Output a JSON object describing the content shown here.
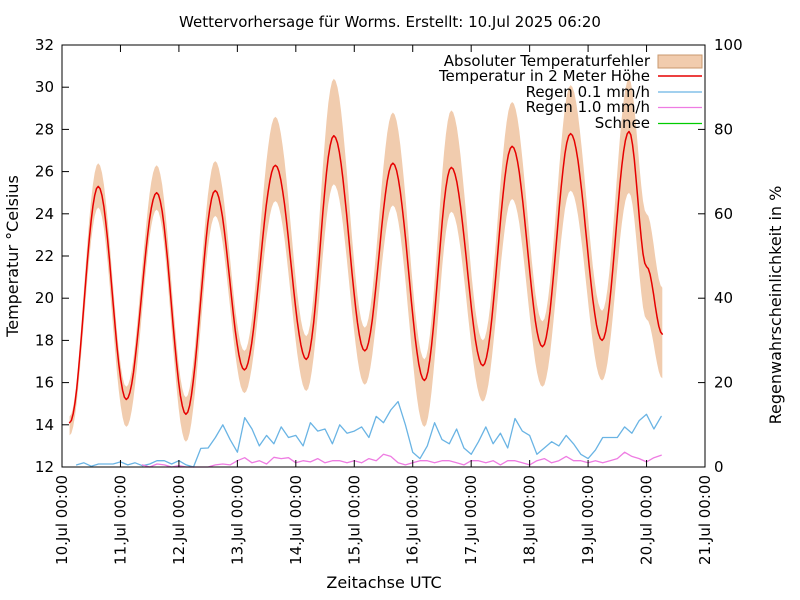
{
  "title": "Wettervorhersage für Worms. Erstellt: 10.Jul 2025 06:20",
  "axes": {
    "x_label": "Zeitachse UTC",
    "y_left_label": "Temperatur °Celsius",
    "y_right_label": "Regenwahrscheinlichkeit in %",
    "y_left_ticks": [
      12,
      14,
      16,
      18,
      20,
      22,
      24,
      26,
      28,
      30,
      32
    ],
    "y_right_ticks": [
      0,
      20,
      40,
      60,
      80,
      100
    ],
    "x_tick_labels": [
      "10.Jul 00:00",
      "11.Jul 00:00",
      "12.Jul 00:00",
      "13.Jul 00:00",
      "14.Jul 00:00",
      "15.Jul 00:00",
      "16.Jul 00:00",
      "17.Jul 00:00",
      "18.Jul 00:00",
      "19.Jul 00:00",
      "20.Jul 00:00",
      "21.Jul 00:00"
    ]
  },
  "legend": {
    "items": [
      {
        "label": "Absoluter Temperaturfehler",
        "type": "band",
        "color": "#f1ccae"
      },
      {
        "label": "Temperatur in 2 Meter Höhe",
        "type": "line",
        "color": "#e60000"
      },
      {
        "label": "Regen 0.1 mm/h",
        "type": "line",
        "color": "#6ab4e4"
      },
      {
        "label": "Regen 1.0 mm/h",
        "type": "line",
        "color": "#ee7ce2"
      },
      {
        "label": "Schnee",
        "type": "line",
        "color": "#00cc00"
      }
    ]
  },
  "chart_data": {
    "type": "line",
    "title": "Wettervorhersage für Worms. Erstellt: 10.Jul 2025 06:20",
    "xlabel": "Zeitachse UTC",
    "ylabel_left": "Temperatur °Celsius",
    "ylabel_right": "Regenwahrscheinlichkeit in %",
    "x_unit": "days since 10.Jul 2025 00:00 UTC",
    "x_range_days": [
      0,
      11
    ],
    "ylim_left": [
      12,
      32
    ],
    "ylim_right": [
      0,
      100
    ],
    "grid": false,
    "legend_position": "top-right-inside",
    "interpolation_between_extremes": "cosine",
    "series": [
      {
        "name": "Absoluter Temperaturfehler",
        "type": "band",
        "axis": "left",
        "color": "#f1ccae",
        "anchors_t": [
          0.13,
          0.62,
          1.1,
          1.62,
          2.12,
          2.62,
          3.12,
          3.65,
          4.18,
          4.65,
          5.18,
          5.66,
          6.2,
          6.66,
          7.2,
          7.7,
          8.22,
          8.7,
          9.24,
          9.7,
          10.0,
          10.27
        ],
        "upper": [
          14.4,
          26.4,
          15.8,
          26.3,
          15.3,
          26.5,
          17.5,
          28.6,
          18.2,
          30.4,
          18.6,
          28.8,
          17.1,
          28.9,
          18.0,
          29.3,
          18.9,
          30.1,
          19.4,
          30.4,
          24.0,
          20.5
        ],
        "lower": [
          13.5,
          24.3,
          13.9,
          24.2,
          13.2,
          23.9,
          15.5,
          24.6,
          15.6,
          25.4,
          15.9,
          24.4,
          13.9,
          24.1,
          15.1,
          24.7,
          15.8,
          25.1,
          16.1,
          25.0,
          19.0,
          16.2
        ]
      },
      {
        "name": "Temperatur in 2 Meter Höhe",
        "type": "line",
        "axis": "left",
        "color": "#e60000",
        "anchors_t": [
          0.13,
          0.62,
          1.1,
          1.62,
          2.12,
          2.62,
          3.12,
          3.65,
          4.18,
          4.65,
          5.18,
          5.66,
          6.2,
          6.66,
          7.2,
          7.7,
          8.22,
          8.7,
          9.24,
          9.7,
          10.0,
          10.27
        ],
        "values": [
          14.1,
          25.3,
          15.2,
          25.0,
          14.5,
          25.1,
          16.6,
          26.3,
          17.1,
          27.7,
          17.5,
          26.4,
          16.1,
          26.2,
          16.8,
          27.2,
          17.7,
          27.8,
          18.0,
          27.9,
          21.5,
          18.3
        ]
      },
      {
        "name": "Regen 0.1 mm/h",
        "type": "line",
        "axis": "right",
        "color": "#6ab4e4",
        "t0": 0.25,
        "dt": 0.125,
        "values": [
          0.5,
          1.0,
          0.2,
          0.7,
          0.7,
          0.7,
          1.2,
          0.5,
          1.0,
          0.3,
          0.7,
          1.5,
          1.5,
          0.7,
          1.5,
          0.5,
          0.0,
          4.4,
          4.5,
          7.0,
          10.0,
          6.5,
          3.5,
          11.7,
          9.0,
          5.0,
          7.5,
          5.5,
          9.5,
          7.0,
          7.5,
          5.0,
          10.5,
          8.5,
          9.0,
          5.5,
          10.0,
          8.0,
          8.5,
          9.5,
          7.0,
          12.0,
          10.5,
          13.5,
          15.5,
          10.0,
          3.5,
          2.0,
          5.0,
          10.5,
          6.5,
          5.5,
          9.0,
          4.5,
          3.0,
          6.0,
          9.5,
          5.5,
          8.0,
          4.5,
          11.5,
          8.5,
          7.5,
          3.0,
          4.5,
          6.0,
          5.0,
          7.5,
          5.5,
          3.0,
          2.0,
          4.0,
          7.0,
          7.0,
          7.0,
          9.5,
          8.0,
          11.0,
          12.5,
          9.0,
          12.0
        ]
      },
      {
        "name": "Regen 1.0 mm/h",
        "type": "line",
        "axis": "right",
        "color": "#ee7ce2",
        "t0": 1.375,
        "dt": 0.125,
        "values": [
          0.5,
          0.0,
          0.7,
          0.5,
          0.0,
          0.3,
          0.0,
          0.0,
          0.0,
          0.0,
          0.5,
          0.7,
          0.5,
          1.5,
          2.2,
          1.0,
          1.5,
          0.7,
          2.3,
          2.0,
          2.2,
          1.0,
          1.5,
          1.2,
          2.0,
          1.0,
          1.5,
          1.5,
          1.0,
          1.5,
          1.0,
          2.0,
          1.5,
          3.0,
          2.5,
          1.0,
          0.5,
          1.0,
          1.5,
          1.5,
          1.0,
          1.5,
          1.5,
          1.0,
          0.5,
          1.5,
          1.5,
          1.0,
          1.5,
          0.5,
          1.5,
          1.5,
          1.0,
          0.5,
          1.5,
          2.0,
          1.0,
          1.5,
          2.5,
          1.5,
          1.5,
          1.0,
          1.5,
          1.0,
          1.5,
          2.0,
          3.5,
          2.5,
          2.0,
          1.2,
          2.2,
          2.8
        ]
      },
      {
        "name": "Schnee",
        "type": "line",
        "axis": "right",
        "color": "#00cc00",
        "t0": 0,
        "dt": 0.125,
        "values": []
      }
    ]
  }
}
